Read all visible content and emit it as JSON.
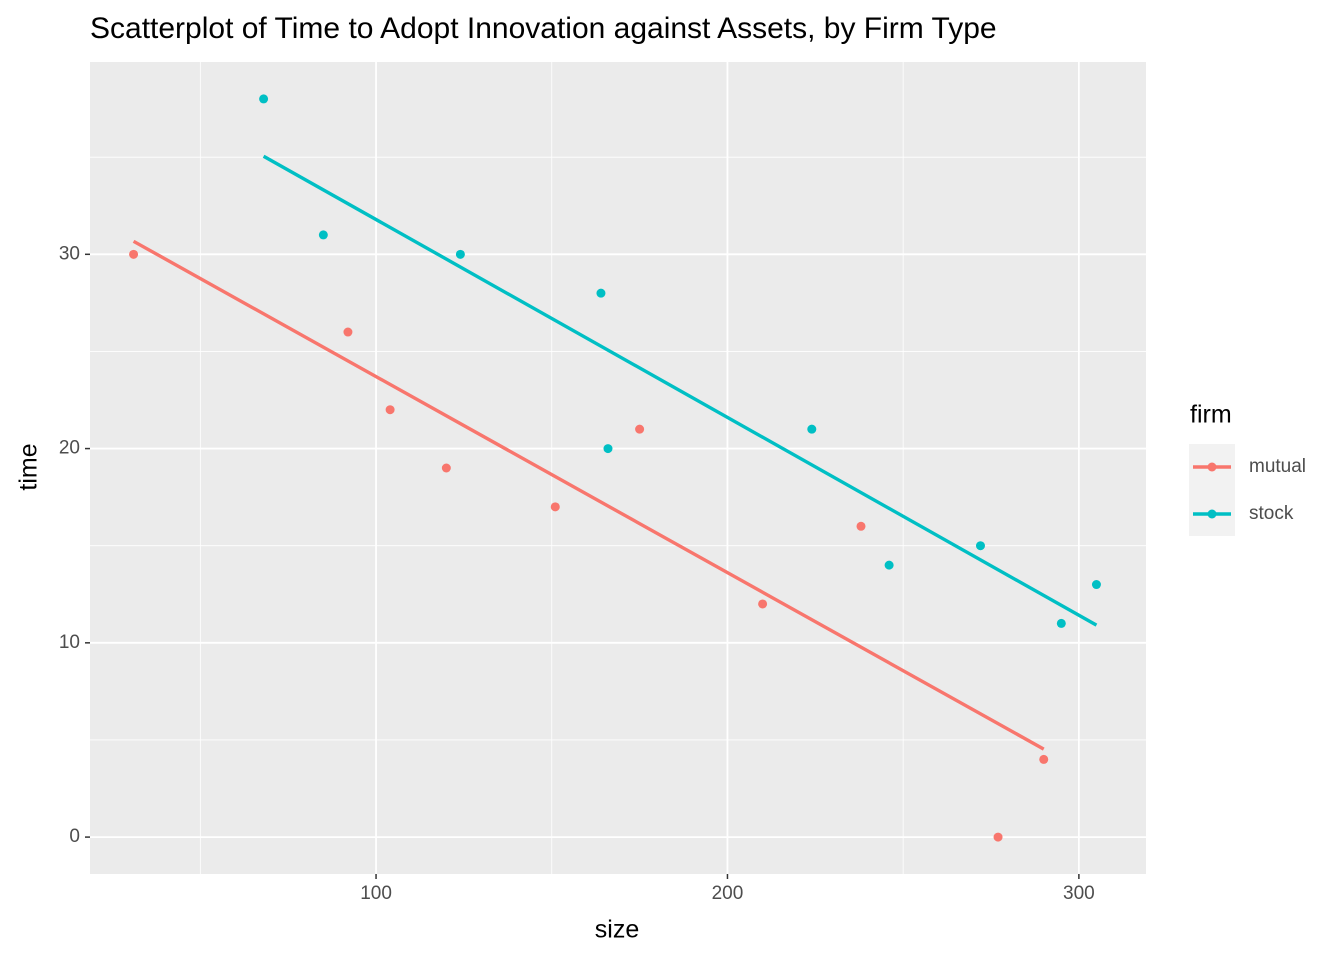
{
  "chart_data": {
    "type": "scatter",
    "title": "Scatterplot of Time to Adopt Innovation against Assets, by Firm Type",
    "x_label": "size",
    "y_label": "time",
    "legend_title": "firm",
    "series": [
      {
        "name": "mutual",
        "color": "#F8766D",
        "x": [
          151,
          92,
          175,
          31,
          104,
          277,
          210,
          120,
          290,
          238
        ],
        "values": [
          17,
          26,
          21,
          30,
          22,
          0,
          12,
          19,
          4,
          16
        ],
        "fit": {
          "x": [
            31,
            290
          ],
          "y": [
            30.67,
            4.53
          ]
        }
      },
      {
        "name": "stock",
        "color": "#00BFC4",
        "x": [
          164,
          272,
          295,
          68,
          85,
          224,
          166,
          305,
          124,
          246
        ],
        "values": [
          28,
          15,
          11,
          38,
          31,
          21,
          20,
          13,
          30,
          14
        ],
        "fit": {
          "x": [
            68,
            305
          ],
          "y": [
            35.05,
            10.91
          ]
        }
      }
    ],
    "xlim": [
      18.6,
      319.1
    ],
    "ylim": [
      -1.9,
      39.9
    ],
    "xticks": [
      100,
      200,
      300
    ],
    "yticks": [
      0,
      10,
      20,
      30
    ],
    "xminor": [
      50,
      150,
      250
    ],
    "yminor": [
      5,
      15,
      25,
      35
    ],
    "grid": true,
    "legend": "right"
  }
}
